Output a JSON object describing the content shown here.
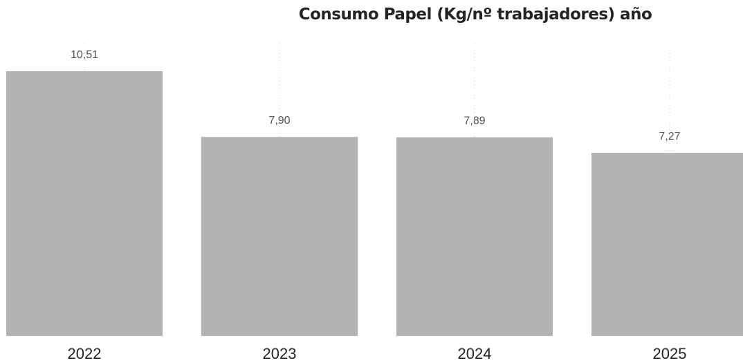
{
  "chart_data": {
    "type": "bar",
    "title": "Consumo Papel (Kg/nº trabajadores) año",
    "categories": [
      "2022",
      "2023",
      "2024",
      "2025"
    ],
    "values": [
      10.51,
      7.9,
      7.89,
      7.27
    ],
    "data_labels": [
      "10,51",
      "7,90",
      "7,89",
      "7,27"
    ],
    "bar_color": "#b3b3b3",
    "guide_color": "#c8c8c8",
    "ylim": [
      0,
      10.51
    ],
    "grid": false,
    "legend": "none"
  }
}
